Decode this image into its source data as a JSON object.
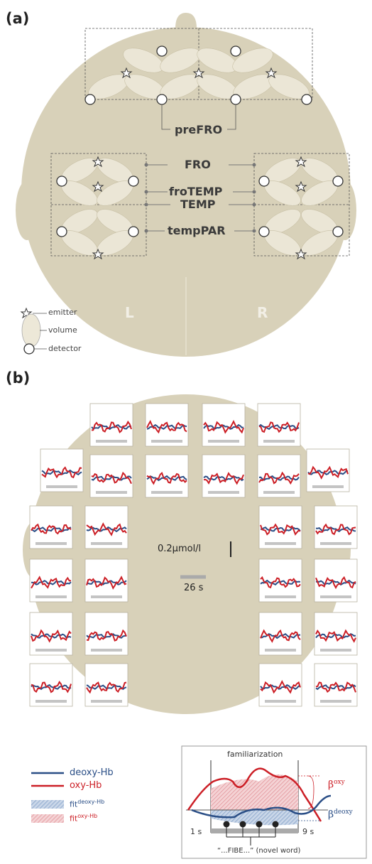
{
  "panel_a": {
    "label": "(a)",
    "regions": [
      "preFRO",
      "FRO",
      "froTEMP",
      "TEMP",
      "tempPAR"
    ],
    "hemispheres": {
      "left": "L",
      "right": "R"
    },
    "legend": {
      "emitter": "emitter",
      "volume": "volume",
      "detector": "detector"
    }
  },
  "panel_b": {
    "label": "(b)",
    "scale_y": "0.2µmol/l",
    "scale_x": "26 s",
    "legend": {
      "deoxy": "deoxy-Hb",
      "oxy": "oxy-Hb",
      "fit_deoxy_prefix": "fit",
      "fit_deoxy_sup": "deoxy-Hb",
      "fit_oxy_prefix": "fit",
      "fit_oxy_sup": "oxy-Hb"
    },
    "inset": {
      "title": "familiarization",
      "t_start": "1 s",
      "t_end": "9 s",
      "stimulus": "“...FIBE...” (novel word)",
      "beta_oxy_prefix": "β",
      "beta_oxy_sup": "oxy",
      "beta_deoxy_prefix": "β",
      "beta_deoxy_sup": "deoxy"
    }
  },
  "colors": {
    "head": "#d8d1b9",
    "deoxy": "#2a4e86",
    "oxy": "#cc1f26",
    "volume": "#ede8d8",
    "fit_deoxy": "#9fb7d6",
    "fit_oxy": "#e6a8ad"
  }
}
